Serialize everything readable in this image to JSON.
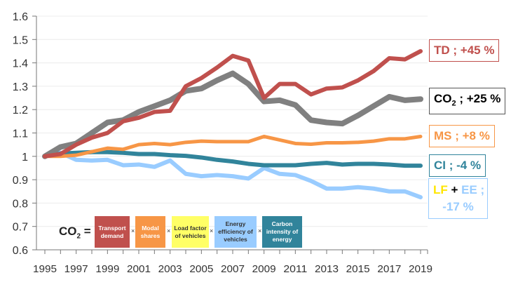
{
  "chart_data": {
    "type": "line",
    "x": [
      1995,
      1996,
      1997,
      1998,
      1999,
      2000,
      2001,
      2002,
      2003,
      2004,
      2005,
      2006,
      2007,
      2008,
      2009,
      2010,
      2011,
      2012,
      2013,
      2014,
      2015,
      2016,
      2017,
      2018,
      2019
    ],
    "xticks": [
      "1995",
      "1997",
      "1999",
      "2001",
      "2003",
      "2005",
      "2007",
      "2009",
      "2011",
      "2013",
      "2015",
      "2017",
      "2019"
    ],
    "yticks": [
      "0.6",
      "0.7",
      "0.8",
      "0.9",
      "1",
      "1.1",
      "1.2",
      "1.3",
      "1.4",
      "1.5",
      "1.6"
    ],
    "ylim": [
      0.6,
      1.6
    ],
    "grid": true,
    "series": [
      {
        "key": "td",
        "color": "#c0504d",
        "values": [
          1.0,
          1.01,
          1.05,
          1.08,
          1.1,
          1.15,
          1.165,
          1.19,
          1.195,
          1.3,
          1.335,
          1.38,
          1.43,
          1.41,
          1.25,
          1.31,
          1.31,
          1.265,
          1.29,
          1.295,
          1.325,
          1.365,
          1.42,
          1.415,
          1.45
        ]
      },
      {
        "key": "co2",
        "color": "#808080",
        "values": [
          1.0,
          1.04,
          1.055,
          1.1,
          1.145,
          1.155,
          1.19,
          1.215,
          1.24,
          1.28,
          1.29,
          1.325,
          1.355,
          1.31,
          1.235,
          1.24,
          1.22,
          1.155,
          1.145,
          1.14,
          1.175,
          1.215,
          1.255,
          1.24,
          1.245
        ]
      },
      {
        "key": "ms",
        "color": "#f79646",
        "values": [
          1.0,
          1.0,
          1.005,
          1.02,
          1.035,
          1.03,
          1.05,
          1.055,
          1.05,
          1.06,
          1.065,
          1.063,
          1.063,
          1.063,
          1.085,
          1.07,
          1.055,
          1.052,
          1.058,
          1.058,
          1.06,
          1.065,
          1.075,
          1.075,
          1.085
        ]
      },
      {
        "key": "ci",
        "color": "#31849b",
        "values": [
          1.0,
          1.012,
          1.015,
          1.018,
          1.018,
          1.015,
          1.01,
          1.01,
          1.005,
          1.002,
          0.995,
          0.985,
          0.978,
          0.968,
          0.962,
          0.962,
          0.962,
          0.968,
          0.972,
          0.965,
          0.968,
          0.968,
          0.965,
          0.96,
          0.96
        ]
      },
      {
        "key": "lfee",
        "color": "#99ccff",
        "values": [
          1.0,
          1.015,
          0.985,
          0.982,
          0.985,
          0.962,
          0.965,
          0.955,
          0.982,
          0.925,
          0.915,
          0.92,
          0.915,
          0.905,
          0.95,
          0.925,
          0.92,
          0.895,
          0.862,
          0.862,
          0.868,
          0.862,
          0.85,
          0.85,
          0.825
        ]
      }
    ],
    "end_labels": {
      "td": "TD ; +45 %",
      "co2_main": "CO",
      "co2_sub": "2",
      "co2_rest": " ; +25 %",
      "ms": "MS ; +8 %",
      "ci": "CI ; -4 %",
      "lf": "LF",
      "plus": " + ",
      "ee": "EE ;",
      "lfee_value": "-17 %"
    },
    "colors": {
      "yellow": "#ffe600",
      "lf_box": "#ffff66"
    },
    "formula": {
      "lhs_main": "CO",
      "lhs_sub": "2",
      "equals": " =",
      "times": "×",
      "factors": [
        "Transport demand",
        "Modal shares",
        "Load factor of vehicles",
        "Energy efficiency of vehicles",
        "Carbon intensity of energy"
      ]
    }
  }
}
